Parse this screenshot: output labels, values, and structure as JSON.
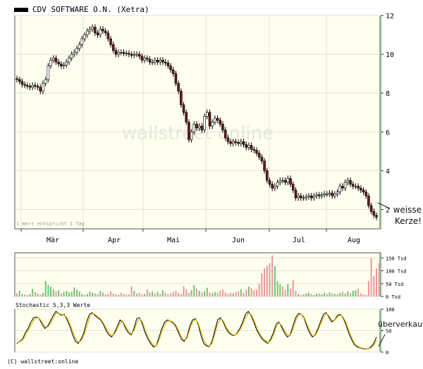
{
  "legend": {
    "label": "CDV SOFTWARE O.N. (Xetra)",
    "swatch_color": "#000000"
  },
  "watermark": "wallstreet online",
  "note": "1 Wert entspricht 1 Tag",
  "annotations": {
    "candle_line1": "weisse",
    "candle_line2": "Kerze!",
    "stoch": "überverkauft"
  },
  "stochastic_title": "Stochastic 5,3,3 Werte",
  "copyright": "(C) wallstreet:online",
  "colors": {
    "panel_bg": "#fffff0",
    "grid": "#e3e3d6",
    "up_body": "#ffffff",
    "down_body": "#6b1a1a",
    "vol_green": "#6ec46e",
    "vol_red": "#e29a9a",
    "stoch_k": "#000000",
    "stoch_d": "#d6b400",
    "accent_bar": "#7fbf7f"
  },
  "chart_data": [
    {
      "type": "candlestick",
      "title": "CDV SOFTWARE O.N. (Xetra)",
      "ylim": [
        1,
        12
      ],
      "yticks": [
        2,
        4,
        6,
        8,
        10,
        12
      ],
      "months": [
        "Mär",
        "Apr",
        "Mai",
        "Jun",
        "Jul",
        "Aug"
      ],
      "grid": true,
      "close": [
        8.7,
        8.6,
        8.45,
        8.4,
        8.35,
        8.3,
        8.4,
        8.35,
        8.3,
        8.1,
        8.5,
        8.7,
        9.4,
        9.7,
        9.8,
        9.6,
        9.5,
        9.4,
        9.45,
        9.6,
        9.8,
        10.0,
        10.1,
        10.3,
        10.5,
        10.8,
        11.0,
        11.2,
        11.3,
        11.4,
        11.1,
        11.0,
        11.3,
        11.2,
        11.1,
        10.8,
        10.5,
        10.2,
        10.0,
        10.1,
        10.1,
        10.05,
        10.05,
        10.0,
        9.95,
        10.0,
        10.0,
        9.9,
        9.7,
        9.8,
        9.75,
        9.6,
        9.6,
        9.7,
        9.6,
        9.7,
        9.6,
        9.55,
        9.4,
        9.2,
        9.0,
        8.5,
        8.1,
        7.4,
        7.0,
        6.5,
        5.6,
        6.0,
        6.4,
        6.2,
        6.3,
        6.1,
        6.8,
        7.0,
        6.3,
        6.5,
        6.7,
        6.6,
        6.4,
        6.1,
        5.7,
        5.5,
        5.4,
        5.5,
        5.45,
        5.4,
        5.5,
        5.35,
        5.2,
        5.3,
        5.1,
        5.05,
        4.9,
        4.7,
        4.5,
        4.0,
        3.5,
        3.3,
        3.1,
        3.2,
        3.4,
        3.5,
        3.5,
        3.4,
        3.6,
        3.3,
        3.0,
        2.6,
        2.7,
        2.6,
        2.6,
        2.65,
        2.7,
        2.6,
        2.7,
        2.75,
        2.7,
        2.75,
        2.8,
        2.8,
        2.85,
        2.7,
        2.8,
        2.9,
        3.2,
        3.1,
        3.4,
        3.5,
        3.3,
        3.2,
        3.2,
        3.1,
        3.0,
        2.9,
        2.7,
        2.2,
        1.9,
        1.7,
        1.6
      ],
      "volume_yticks": [
        0,
        50,
        100,
        150
      ],
      "volume_unit": "Tsd",
      "volume": [
        12,
        22,
        10,
        8,
        6,
        10,
        30,
        18,
        12,
        8,
        14,
        60,
        45,
        38,
        28,
        20,
        24,
        12,
        18,
        22,
        16,
        18,
        35,
        26,
        20,
        10,
        6,
        10,
        18,
        14,
        12,
        10,
        22,
        16,
        8,
        10,
        20,
        12,
        8,
        6,
        14,
        10,
        6,
        8,
        40,
        22,
        12,
        14,
        8,
        10,
        28,
        16,
        20,
        12,
        18,
        10,
        24,
        14,
        8,
        12,
        18,
        22,
        14,
        10,
        40,
        28,
        14,
        24,
        44,
        30,
        22,
        16,
        20,
        34,
        16,
        12,
        18,
        14,
        22,
        26,
        16,
        10,
        14,
        12,
        18,
        20,
        28,
        14,
        26,
        38,
        32,
        24,
        26,
        50,
        90,
        110,
        120,
        130,
        160,
        118,
        60,
        48,
        40,
        26,
        48,
        30,
        64,
        22,
        10,
        6,
        8,
        12,
        14,
        10,
        6,
        10,
        12,
        8,
        14,
        10,
        16,
        12,
        10,
        8,
        14,
        18,
        12,
        20,
        14,
        22,
        24,
        30,
        12,
        8,
        6,
        60,
        150,
        80,
        110,
        130
      ],
      "volume_up": [
        0,
        1,
        0,
        0,
        0,
        1,
        1,
        0,
        0,
        0,
        1,
        1,
        1,
        1,
        1,
        0,
        1,
        0,
        1,
        1,
        1,
        1,
        1,
        1,
        1,
        1,
        0,
        1,
        1,
        1,
        0,
        0,
        1,
        0,
        0,
        0,
        0,
        0,
        0,
        1,
        0,
        0,
        0,
        0,
        0,
        1,
        0,
        0,
        0,
        1,
        0,
        0,
        1,
        0,
        1,
        0,
        1,
        0,
        0,
        0,
        0,
        0,
        0,
        0,
        0,
        0,
        0,
        1,
        1,
        0,
        1,
        0,
        1,
        1,
        0,
        1,
        1,
        0,
        0,
        0,
        0,
        0,
        0,
        1,
        0,
        0,
        1,
        0,
        0,
        1,
        0,
        0,
        0,
        0,
        0,
        0,
        0,
        0,
        0,
        1,
        1,
        1,
        0,
        0,
        1,
        0,
        0,
        0,
        1,
        0,
        0,
        1,
        1,
        0,
        1,
        1,
        0,
        1,
        1,
        0,
        1,
        0,
        1,
        1,
        1,
        0,
        1,
        1,
        0,
        1,
        1,
        0,
        0,
        0,
        0,
        0,
        0,
        0,
        0,
        0
      ]
    },
    {
      "type": "line",
      "title": "Stochastic 5,3,3 Werte",
      "ylim": [
        0,
        100
      ],
      "yticks": [
        0,
        50,
        100
      ],
      "series": [
        {
          "values": [
            20,
            25,
            30,
            45,
            55,
            70,
            80,
            82,
            78,
            65,
            55,
            60,
            72,
            85,
            95,
            90,
            85,
            88,
            75,
            60,
            40,
            25,
            20,
            30,
            45,
            70,
            88,
            92,
            85,
            80,
            75,
            65,
            50,
            40,
            35,
            45,
            60,
            75,
            70,
            55,
            45,
            40,
            55,
            78,
            80,
            65,
            45,
            30,
            20,
            12,
            15,
            35,
            55,
            70,
            75,
            72,
            68,
            60,
            45,
            30,
            25,
            35,
            60,
            75,
            78,
            65,
            40,
            20,
            15,
            12,
            25,
            50,
            75,
            80,
            70,
            55,
            45,
            40,
            38,
            45,
            55,
            70,
            88,
            95,
            85,
            70,
            52,
            40,
            30,
            25,
            20,
            30,
            45,
            65,
            70,
            58,
            45,
            35,
            40,
            60,
            80,
            90,
            88,
            80,
            60,
            45,
            35,
            40,
            55,
            72,
            88,
            92,
            80,
            70,
            75,
            85,
            88,
            80,
            65,
            45,
            30,
            18,
            12,
            10,
            8,
            7,
            8,
            12,
            20,
            35
          ]
        },
        {
          "values": [
            22,
            24,
            28,
            38,
            50,
            62,
            74,
            80,
            79,
            70,
            60,
            58,
            66,
            78,
            90,
            91,
            87,
            86,
            80,
            66,
            48,
            32,
            23,
            26,
            38,
            58,
            80,
            90,
            88,
            82,
            77,
            68,
            55,
            45,
            38,
            42,
            54,
            68,
            71,
            60,
            50,
            43,
            50,
            68,
            78,
            70,
            52,
            36,
            24,
            15,
            14,
            28,
            48,
            63,
            72,
            73,
            70,
            63,
            50,
            36,
            28,
            32,
            52,
            70,
            76,
            68,
            48,
            28,
            18,
            13,
            20,
            42,
            66,
            77,
            73,
            60,
            49,
            42,
            39,
            43,
            52,
            64,
            80,
            90,
            88,
            75,
            58,
            45,
            34,
            28,
            22,
            26,
            40,
            58,
            68,
            62,
            50,
            40,
            38,
            52,
            72,
            85,
            88,
            82,
            66,
            50,
            38,
            38,
            50,
            66,
            82,
            90,
            84,
            74,
            74,
            82,
            86,
            82,
            70,
            52,
            36,
            22,
            15,
            11,
            9,
            8,
            8,
            10,
            16,
            28
          ]
        }
      ]
    }
  ]
}
